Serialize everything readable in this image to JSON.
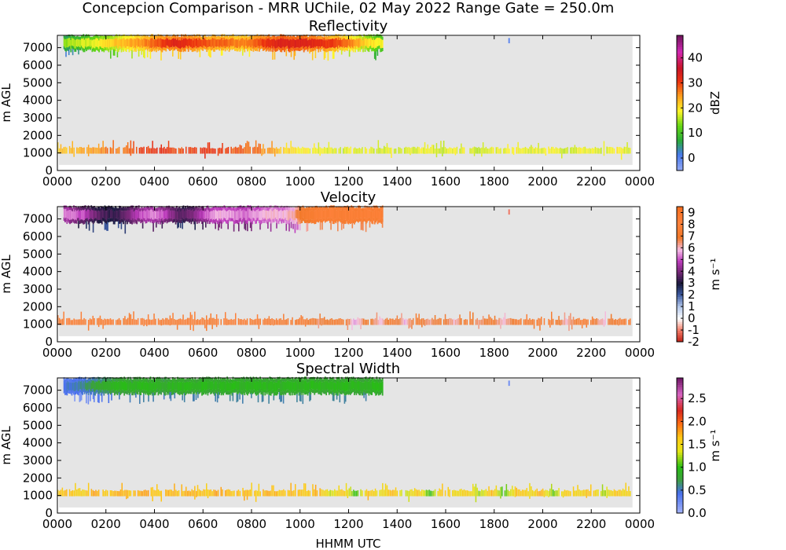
{
  "figure": {
    "title": "Concepcion Comparison - MRR UChile, 02 May 2022 Range Gate = 250.0m",
    "xlabel": "HHMM UTC"
  },
  "chart_data": [
    {
      "type": "heatmap",
      "title": "Reflectivity",
      "xlabel": "HHMM UTC",
      "ylabel": "m AGL",
      "xlim": [
        0,
        2400
      ],
      "ylim": [
        0,
        7700
      ],
      "xticks": [
        "0000",
        "0200",
        "0400",
        "0600",
        "0800",
        "1000",
        "1200",
        "1400",
        "1600",
        "1800",
        "2000",
        "2200",
        "0000"
      ],
      "yticks": [
        "0",
        "1000",
        "2000",
        "3000",
        "4000",
        "5000",
        "6000",
        "7000"
      ],
      "colorbar": {
        "label": "dBZ",
        "range": [
          -5,
          49
        ],
        "ticks": [
          "0",
          "10",
          "20",
          "30",
          "40"
        ],
        "tick_values": [
          0,
          10,
          20,
          30,
          40
        ]
      },
      "bands": [
        {
          "name": "upper",
          "x_start": 25,
          "x_end": 1340,
          "y_bottom": 6800,
          "y_top": 7650,
          "core_values": [
            14,
            16,
            17,
            18,
            20,
            22,
            23,
            24,
            26,
            28,
            30,
            33,
            32,
            30,
            29,
            28,
            28,
            27,
            26,
            28,
            30,
            32,
            33,
            33,
            33,
            32,
            31,
            30,
            28,
            26,
            22,
            20,
            18
          ],
          "edge_values": [
            6,
            8,
            10,
            12,
            14,
            16,
            18,
            20,
            22,
            24,
            25,
            26,
            26,
            25,
            24,
            24,
            23,
            22,
            22,
            24,
            26,
            27,
            28,
            28,
            27,
            26,
            25,
            23,
            21,
            19,
            16,
            13,
            10
          ]
        },
        {
          "name": "lower",
          "x_start": 0,
          "x_end": 2400,
          "y_center": 1100,
          "y_half": 140,
          "values": [
            22,
            23,
            24,
            25,
            27,
            26,
            28,
            30,
            31,
            30,
            29,
            30,
            31,
            30,
            29,
            28,
            27,
            25,
            22,
            20,
            19,
            18,
            18,
            17,
            18,
            18,
            17,
            18,
            17,
            18,
            18,
            17,
            18,
            18,
            17,
            18,
            18,
            19,
            18,
            18,
            18,
            17,
            18,
            18,
            17,
            19,
            18,
            18
          ]
        }
      ]
    },
    {
      "type": "heatmap",
      "title": "Velocity",
      "xlabel": "HHMM UTC",
      "ylabel": "m AGL",
      "xlim": [
        0,
        2400
      ],
      "ylim": [
        0,
        7700
      ],
      "xticks": [
        "0000",
        "0200",
        "0400",
        "0600",
        "0800",
        "1000",
        "1200",
        "1400",
        "1600",
        "1800",
        "2000",
        "2200",
        "0000"
      ],
      "yticks": [
        "0",
        "1000",
        "2000",
        "3000",
        "4000",
        "5000",
        "6000",
        "7000"
      ],
      "colorbar": {
        "label": "m s⁻¹",
        "range": [
          -2,
          9.5
        ],
        "ticks": [
          "9",
          "8",
          "7",
          "6",
          "5",
          "4",
          "3",
          "2",
          "1",
          "0",
          "-1",
          "-2"
        ],
        "tick_values": [
          9,
          8,
          7,
          6,
          5,
          4,
          3,
          2,
          1,
          0,
          -1,
          -2
        ]
      },
      "bands": [
        {
          "name": "upper",
          "x_start": 25,
          "x_end": 1340,
          "y_bottom": 6750,
          "y_top": 7650,
          "core_values": [
            5.5,
            5.3,
            5.0,
            4.0,
            3.5,
            3.2,
            3.8,
            4.5,
            5.2,
            5.5,
            5.0,
            4.0,
            3.6,
            4.2,
            5.0,
            5.6,
            5.8,
            5.5,
            5.2,
            5.6,
            5.8,
            6.0,
            5.8,
            6.2,
            7.3,
            7.6,
            7.8,
            7.8,
            7.7,
            7.8,
            7.7,
            7.8,
            7.8
          ],
          "edge_values": [
            4.6,
            4.2,
            3.6,
            3.2,
            3.0,
            2.9,
            3.3,
            3.8,
            4.4,
            4.6,
            4.2,
            3.6,
            3.3,
            3.6,
            4.3,
            4.8,
            5.0,
            4.9,
            4.7,
            5.0,
            5.2,
            5.4,
            5.2,
            5.6,
            7.0,
            7.4,
            7.6,
            7.6,
            7.5,
            7.6,
            7.5,
            7.6,
            7.6
          ]
        },
        {
          "name": "lower",
          "x_start": 0,
          "x_end": 2400,
          "y_center": 1100,
          "y_half": 140,
          "values": [
            7.6,
            7.7,
            7.6,
            7.8,
            7.7,
            7.6,
            7.7,
            7.8,
            7.7,
            7.6,
            7.7,
            7.8,
            7.7,
            7.6,
            7.7,
            7.8,
            7.6,
            7.7,
            7.5,
            7.4,
            7.6,
            6.6,
            7.2,
            7.5,
            5.6,
            7.3,
            6.0,
            7.4,
            5.8,
            7.5,
            6.2,
            7.3,
            5.9,
            7.6,
            6.4,
            7.4,
            5.7,
            7.6,
            7.4,
            7.6,
            7.5,
            6.0,
            7.4,
            7.6,
            5.8,
            7.4,
            7.6,
            7.5
          ]
        }
      ]
    },
    {
      "type": "heatmap",
      "title": "Spectral Width",
      "xlabel": "HHMM UTC",
      "ylabel": "m AGL",
      "xlim": [
        0,
        2400
      ],
      "ylim": [
        0,
        7700
      ],
      "xticks": [
        "0000",
        "0200",
        "0400",
        "0600",
        "0800",
        "1000",
        "1200",
        "1400",
        "1600",
        "1800",
        "2000",
        "2200",
        "0000"
      ],
      "yticks": [
        "0",
        "1000",
        "2000",
        "3000",
        "4000",
        "5000",
        "6000",
        "7000"
      ],
      "colorbar": {
        "label": "m s⁻¹",
        "range": [
          0,
          2.95
        ],
        "ticks": [
          "0.0",
          "0.5",
          "1.0",
          "1.5",
          "2.0",
          "2.5"
        ],
        "tick_values": [
          0.0,
          0.5,
          1.0,
          1.5,
          2.0,
          2.5
        ]
      },
      "bands": [
        {
          "name": "upper",
          "x_start": 25,
          "x_end": 1340,
          "y_bottom": 6750,
          "y_top": 7650,
          "core_values": [
            0.45,
            0.5,
            0.6,
            0.75,
            0.85,
            0.9,
            0.95,
            0.9,
            0.95,
            0.9,
            0.85,
            0.9,
            0.95,
            0.9,
            0.95,
            0.9,
            0.92,
            0.95,
            0.9,
            0.95,
            0.92,
            0.95,
            0.9,
            0.95,
            0.92,
            0.95,
            0.9,
            0.95,
            0.92,
            0.95,
            0.9,
            0.95,
            0.95
          ],
          "edge_values": [
            0.35,
            0.4,
            0.45,
            0.55,
            0.65,
            0.72,
            0.78,
            0.75,
            0.8,
            0.78,
            0.74,
            0.78,
            0.8,
            0.78,
            0.8,
            0.78,
            0.8,
            0.82,
            0.78,
            0.82,
            0.8,
            0.82,
            0.78,
            0.82,
            0.8,
            0.82,
            0.78,
            0.82,
            0.8,
            0.82,
            0.78,
            0.82,
            0.8
          ]
        },
        {
          "name": "lower",
          "x_start": 0,
          "x_end": 2400,
          "y_center": 1100,
          "y_half": 140,
          "values": [
            1.6,
            1.7,
            1.55,
            1.8,
            1.6,
            1.75,
            1.65,
            1.8,
            1.6,
            1.7,
            1.65,
            1.75,
            1.6,
            1.8,
            1.65,
            1.7,
            1.6,
            1.75,
            1.65,
            1.7,
            1.6,
            1.75,
            1.3,
            1.7,
            1.0,
            1.65,
            1.4,
            1.7,
            1.2,
            1.65,
            1.0,
            1.7,
            1.5,
            1.6,
            1.2,
            1.7,
            1.0,
            1.65,
            1.5,
            1.7,
            1.1,
            1.65,
            1.5,
            1.7,
            1.2,
            1.65,
            1.5,
            1.6
          ]
        }
      ]
    }
  ]
}
